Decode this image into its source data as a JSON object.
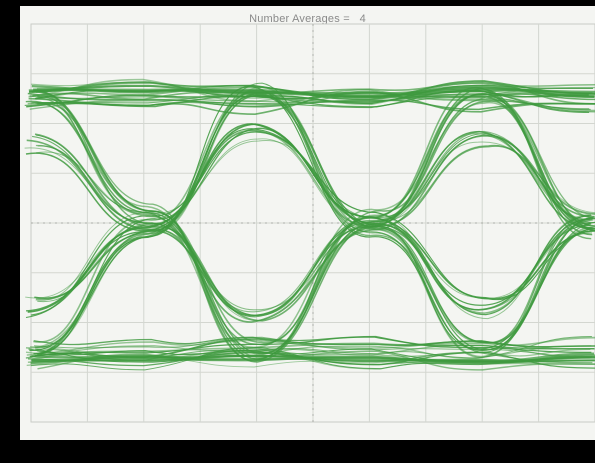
{
  "readout": {
    "text": "Number Averages =   4"
  },
  "chart_data": {
    "type": "line",
    "title": "",
    "xlabel": "",
    "ylabel": "",
    "grid": true,
    "grid_divisions": {
      "x": 10,
      "y": 8
    },
    "xlim": [
      0,
      10
    ],
    "ylim": [
      -4,
      4
    ],
    "trace_color": "#3f9a3f",
    "series": [
      {
        "values_x": [
          0.0,
          2.1,
          4.0,
          6.1,
          8.0,
          10.0
        ],
        "values_y": [
          2.7,
          2.7,
          2.6,
          2.6,
          2.7,
          2.6
        ]
      },
      {
        "values_x": [
          0.0,
          2.1,
          4.0,
          6.1,
          8.0,
          10.0
        ],
        "values_y": [
          2.45,
          2.5,
          2.4,
          2.5,
          2.45,
          2.4
        ]
      },
      {
        "values_x": [
          0.0,
          2.1,
          4.0,
          6.1,
          8.0,
          10.0
        ],
        "values_y": [
          -2.55,
          -2.55,
          -2.45,
          -2.5,
          -2.55,
          -2.5
        ]
      },
      {
        "values_x": [
          0.0,
          2.1,
          4.0,
          6.1,
          8.0,
          10.0
        ],
        "values_y": [
          -2.75,
          -2.75,
          -2.7,
          -2.75,
          -2.8,
          -2.7
        ]
      },
      {
        "values_x": [
          0.0,
          2.1,
          4.0,
          6.1,
          8.0,
          10.0
        ],
        "values_y": [
          2.6,
          0.2,
          -2.6,
          0.1,
          2.6,
          -0.1
        ]
      },
      {
        "values_x": [
          0.0,
          2.1,
          4.0,
          6.1,
          8.0,
          10.0
        ],
        "values_y": [
          -2.6,
          -0.1,
          2.6,
          -0.1,
          -2.6,
          0.1
        ]
      },
      {
        "values_x": [
          0.0,
          2.1,
          4.0,
          6.1,
          8.0,
          10.0
        ],
        "values_y": [
          1.6,
          0.0,
          -1.8,
          0.0,
          1.7,
          0.0
        ]
      },
      {
        "values_x": [
          0.0,
          2.1,
          4.0,
          6.1,
          8.0,
          10.0
        ],
        "values_y": [
          -1.7,
          0.0,
          1.8,
          0.0,
          -1.7,
          0.0
        ]
      }
    ]
  }
}
